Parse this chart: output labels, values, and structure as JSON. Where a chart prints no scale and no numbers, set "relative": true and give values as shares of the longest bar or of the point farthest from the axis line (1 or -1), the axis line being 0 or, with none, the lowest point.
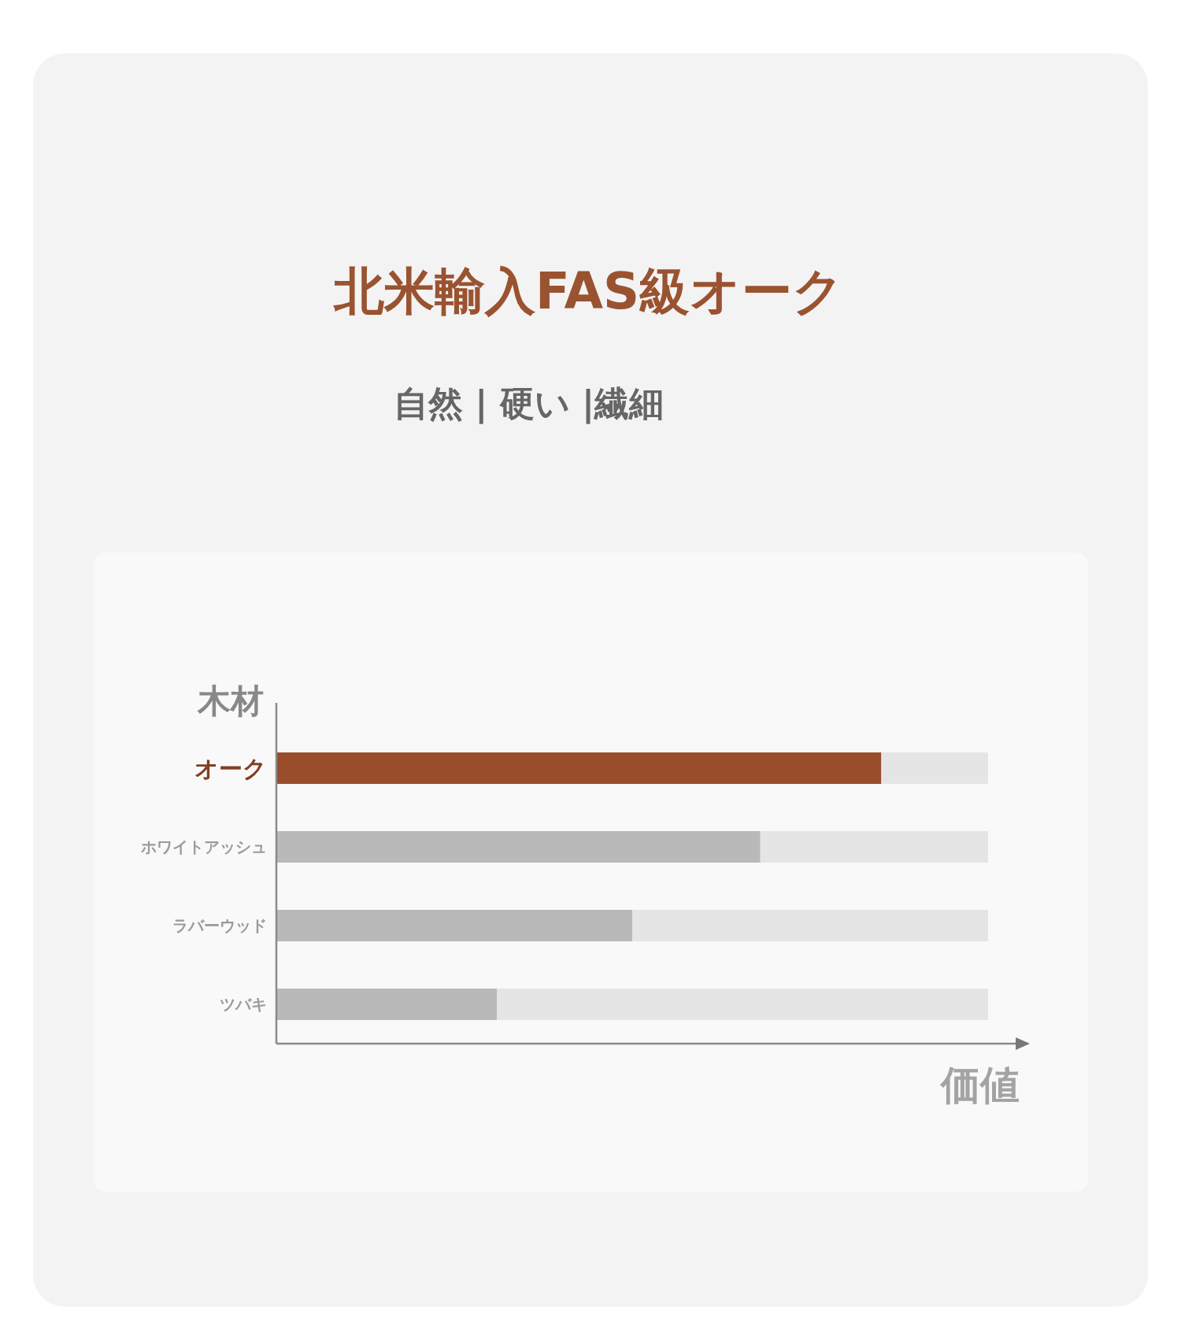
{
  "chart_data": {
    "type": "bar",
    "orientation": "horizontal",
    "stacked": true,
    "relative": true,
    "title": "北米輸入FAS級オーク",
    "subtitle": "自然 | 硬い |繊細",
    "ylabel": "木材",
    "xlabel": "価値",
    "categories": [
      "オーク",
      "ホワイトアッシュ",
      "ラバーウッド",
      "ツバキ"
    ],
    "series": [
      {
        "colors": [
          "#994d2a",
          "#bab9ba",
          "#bab9ba",
          "#bab9ba"
        ],
        "values": [
          0.85,
          0.68,
          0.5,
          0.31
        ]
      },
      {
        "color": "#e6e5e6",
        "values": [
          0.15,
          0.32,
          0.5,
          0.69
        ]
      }
    ]
  }
}
